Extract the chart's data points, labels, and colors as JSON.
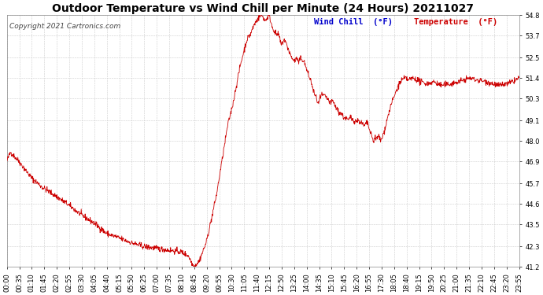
{
  "title": "Outdoor Temperature vs Wind Chill per Minute (24 Hours) 20211027",
  "copyright": "Copyright 2021 Cartronics.com",
  "legend_wind_chill": "Wind Chill  (°F)",
  "legend_temperature": "Temperature  (°F)",
  "line_color": "#cc0000",
  "wind_chill_color": "#0000cc",
  "temperature_color": "#cc0000",
  "background_color": "#ffffff",
  "grid_color": "#cccccc",
  "ylim_min": 41.2,
  "ylim_max": 54.8,
  "yticks": [
    41.2,
    42.3,
    43.5,
    44.6,
    45.7,
    46.9,
    48.0,
    49.1,
    50.3,
    51.4,
    52.5,
    53.7,
    54.8
  ],
  "x_tick_labels": [
    "00:00",
    "00:35",
    "01:10",
    "01:45",
    "02:20",
    "02:55",
    "03:30",
    "04:05",
    "04:40",
    "05:15",
    "05:50",
    "06:25",
    "07:00",
    "07:35",
    "08:10",
    "08:45",
    "09:20",
    "09:55",
    "10:30",
    "11:05",
    "11:40",
    "12:15",
    "12:50",
    "13:25",
    "14:00",
    "14:35",
    "15:10",
    "15:45",
    "16:20",
    "16:55",
    "17:30",
    "18:05",
    "18:40",
    "19:15",
    "19:50",
    "20:25",
    "21:00",
    "21:35",
    "22:10",
    "22:45",
    "23:20",
    "23:55"
  ],
  "num_points": 1440,
  "title_fontsize": 10,
  "copyright_fontsize": 6.5,
  "axis_fontsize": 6,
  "legend_fontsize": 7.5
}
